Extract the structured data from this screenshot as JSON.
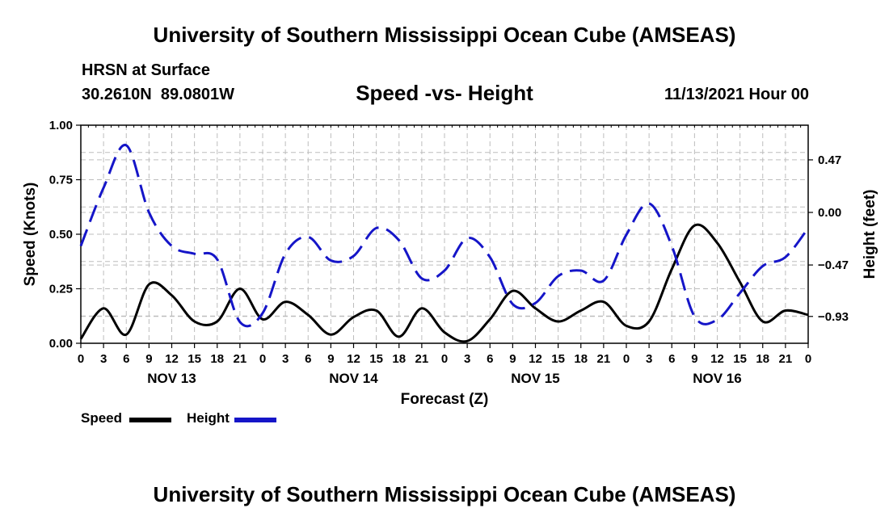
{
  "header": {
    "title": "University of Southern Mississippi Ocean Cube (AMSEAS)",
    "station": "HRSN at Surface",
    "coords": "30.2610N  89.0801W",
    "subtitle": "Speed -vs- Height",
    "datetime": "11/13/2021 Hour 00"
  },
  "footer": {
    "title": "University of Southern Mississippi Ocean Cube (AMSEAS)"
  },
  "legend": {
    "speed_label": "Speed",
    "height_label": "Height"
  },
  "chart_data": {
    "type": "line",
    "xlabel": "Forecast (Z)",
    "ylabel_left": "Speed (Knots)",
    "ylabel_right": "Height (feet)",
    "x_range_hours": [
      0,
      96
    ],
    "ylim_left": [
      0,
      1.0
    ],
    "ylim_right": [
      -1.17,
      0.78
    ],
    "y_ticks_left": [
      "0.00",
      "0.25",
      "0.50",
      "0.75",
      "1.00"
    ],
    "y_tick_values_left": [
      0,
      0.25,
      0.5,
      0.75,
      1.0
    ],
    "y_ticks_right": [
      "0.47",
      "0.00",
      "−0.47",
      "−0.93"
    ],
    "y_tick_values_right": [
      0.47,
      0.0,
      -0.47,
      -0.93
    ],
    "x_tick_labels": [
      "0",
      "3",
      "6",
      "9",
      "12",
      "15",
      "18",
      "21",
      "0",
      "3",
      "6",
      "9",
      "12",
      "15",
      "18",
      "21",
      "0",
      "3",
      "6",
      "9",
      "12",
      "15",
      "18",
      "21",
      "0",
      "3",
      "6",
      "9",
      "12",
      "15",
      "18",
      "21",
      "0"
    ],
    "day_labels": [
      "NOV 13",
      "NOV 14",
      "NOV 15",
      "NOV 16"
    ],
    "day_label_hours": [
      12,
      36,
      60,
      84
    ],
    "grid": true,
    "series": [
      {
        "name": "Speed",
        "axis": "left",
        "color": "#000000",
        "style": "solid",
        "x": [
          0,
          3,
          6,
          9,
          12,
          15,
          18,
          21,
          24,
          27,
          30,
          33,
          36,
          39,
          42,
          45,
          48,
          51,
          54,
          57,
          60,
          63,
          66,
          69,
          72,
          75,
          78,
          81,
          84,
          87,
          90,
          93,
          96
        ],
        "values": [
          0.02,
          0.16,
          0.04,
          0.27,
          0.22,
          0.1,
          0.1,
          0.25,
          0.11,
          0.19,
          0.13,
          0.04,
          0.12,
          0.15,
          0.03,
          0.16,
          0.05,
          0.01,
          0.11,
          0.24,
          0.16,
          0.1,
          0.15,
          0.19,
          0.08,
          0.1,
          0.34,
          0.54,
          0.46,
          0.28,
          0.1,
          0.15,
          0.13
        ]
      },
      {
        "name": "Height",
        "axis": "right",
        "color": "#1515c8",
        "style": "dashed",
        "x": [
          0,
          3,
          6,
          9,
          12,
          15,
          18,
          21,
          24,
          27,
          30,
          33,
          36,
          39,
          42,
          45,
          48,
          51,
          54,
          57,
          60,
          63,
          66,
          69,
          72,
          75,
          78,
          81,
          84,
          87,
          90,
          93,
          96
        ],
        "values": [
          -0.3,
          0.22,
          0.6,
          0.0,
          -0.3,
          -0.37,
          -0.42,
          -0.98,
          -0.9,
          -0.37,
          -0.22,
          -0.43,
          -0.39,
          -0.14,
          -0.25,
          -0.59,
          -0.52,
          -0.23,
          -0.4,
          -0.82,
          -0.81,
          -0.57,
          -0.52,
          -0.61,
          -0.2,
          0.08,
          -0.3,
          -0.93,
          -0.96,
          -0.72,
          -0.48,
          -0.4,
          -0.14
        ]
      }
    ]
  }
}
